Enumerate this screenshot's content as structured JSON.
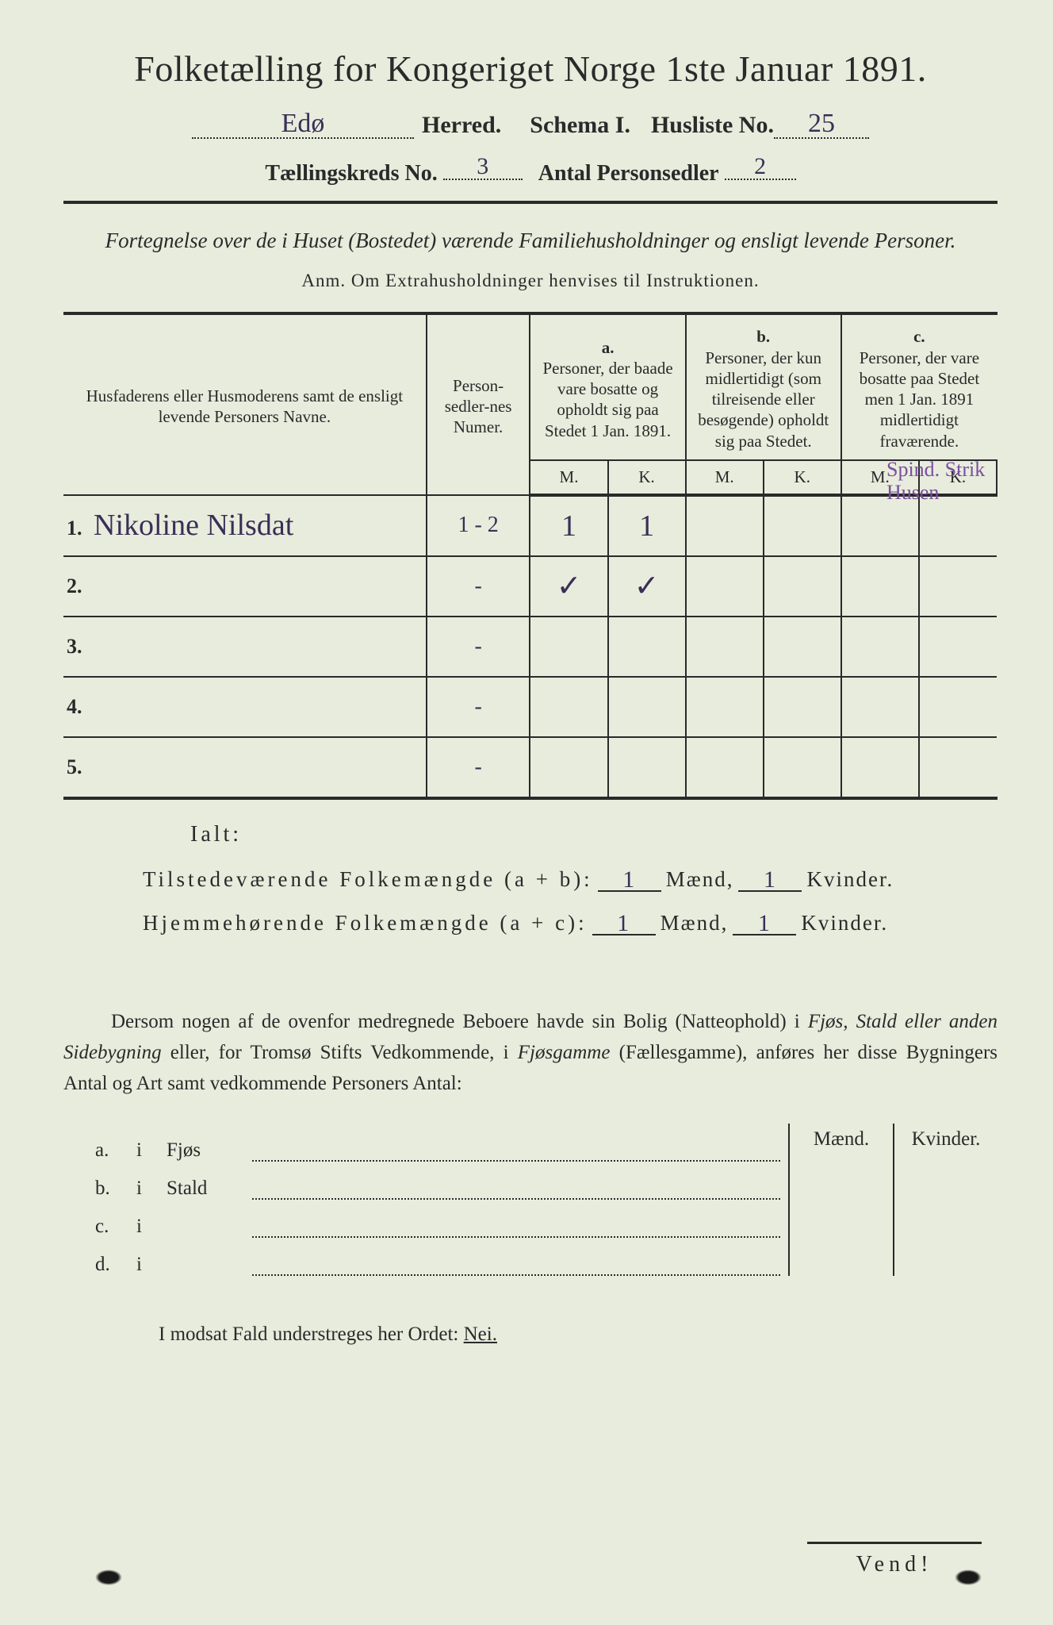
{
  "colors": {
    "paper": "#e8ecdd",
    "ink": "#2a2a2a",
    "handwriting": "#3a2f55",
    "handwriting_purple": "#7a4fa0"
  },
  "title": "Folketælling for Kongeriget Norge 1ste Januar 1891.",
  "line2": {
    "herred_hand": "Edø",
    "herred_label": "Herred.",
    "schema_label": "Schema I.",
    "husliste_label": "Husliste No.",
    "husliste_hand": "25"
  },
  "line3": {
    "kreds_label": "Tællingskreds No.",
    "kreds_hand": "3",
    "antal_label": "Antal Personsedler",
    "antal_hand": "2"
  },
  "subtitle": "Fortegnelse over de i Huset (Bostedet) værende Familiehusholdninger og ensligt levende Personer.",
  "anm": "Anm.   Om Extrahusholdninger henvises til Instruktionen.",
  "table": {
    "col_names": "Husfaderens eller Husmoderens samt de ensligt levende Personers Navne.",
    "col_numer": "Person-sedler-nes Numer.",
    "col_a_head": "a.",
    "col_a": "Personer, der baade vare bosatte og opholdt sig paa Stedet 1 Jan. 1891.",
    "col_b_head": "b.",
    "col_b": "Personer, der kun midlertidigt (som tilreisende eller besøgende) opholdt sig paa Stedet.",
    "col_c_head": "c.",
    "col_c": "Personer, der vare bosatte paa Stedet men 1 Jan. 1891 midlertidigt fraværende.",
    "M": "M.",
    "K": "K.",
    "rows": [
      {
        "n": "1.",
        "name": "Nikoline Nilsdat",
        "numer": "1 - 2",
        "aM": "1",
        "aK": "1",
        "bM": "",
        "bK": "",
        "cM": "",
        "cK": ""
      },
      {
        "n": "2.",
        "name": "",
        "numer": "-",
        "aM": "✓",
        "aK": "✓",
        "bM": "",
        "bK": "",
        "cM": "",
        "cK": ""
      },
      {
        "n": "3.",
        "name": "",
        "numer": "-",
        "aM": "",
        "aK": "",
        "bM": "",
        "bK": "",
        "cM": "",
        "cK": ""
      },
      {
        "n": "4.",
        "name": "",
        "numer": "-",
        "aM": "",
        "aK": "",
        "bM": "",
        "bK": "",
        "cM": "",
        "cK": ""
      },
      {
        "n": "5.",
        "name": "",
        "numer": "-",
        "aM": "",
        "aK": "",
        "bM": "",
        "bK": "",
        "cM": "",
        "cK": ""
      }
    ],
    "margin_note": "Spind. Strik Husen"
  },
  "ialt": "Ialt:",
  "sum1": {
    "label": "Tilstedeværende Folkemængde (a + b):",
    "m_val": "1",
    "m_lbl": "Mænd,",
    "k_val": "1",
    "k_lbl": "Kvinder."
  },
  "sum2": {
    "label": "Hjemmehørende Folkemængde (a + c):",
    "m_val": "1",
    "m_lbl": "Mænd,",
    "k_val": "1",
    "k_lbl": "Kvinder."
  },
  "para": {
    "t1": "Dersom nogen af de ovenfor medregnede Beboere havde sin Bolig (Natteophold) i ",
    "i1": "Fjøs, Stald eller anden Sidebygning",
    "t2": " eller, for Tromsø Stifts Vedkommende, i ",
    "i2": "Fjøsgamme",
    "t3": " (Fællesgamme), anføres her disse Bygningers Antal og Art samt vedkommende Personers Antal:"
  },
  "lower": {
    "maend": "Mænd.",
    "kvinder": "Kvinder.",
    "rows": [
      {
        "a": "a.",
        "i": "i",
        "name": "Fjøs"
      },
      {
        "a": "b.",
        "i": "i",
        "name": "Stald"
      },
      {
        "a": "c.",
        "i": "i",
        "name": ""
      },
      {
        "a": "d.",
        "i": "i",
        "name": ""
      }
    ]
  },
  "nei": "I modsat Fald understreges her Ordet: ",
  "nei_word": "Nei.",
  "vend": "Vend!"
}
